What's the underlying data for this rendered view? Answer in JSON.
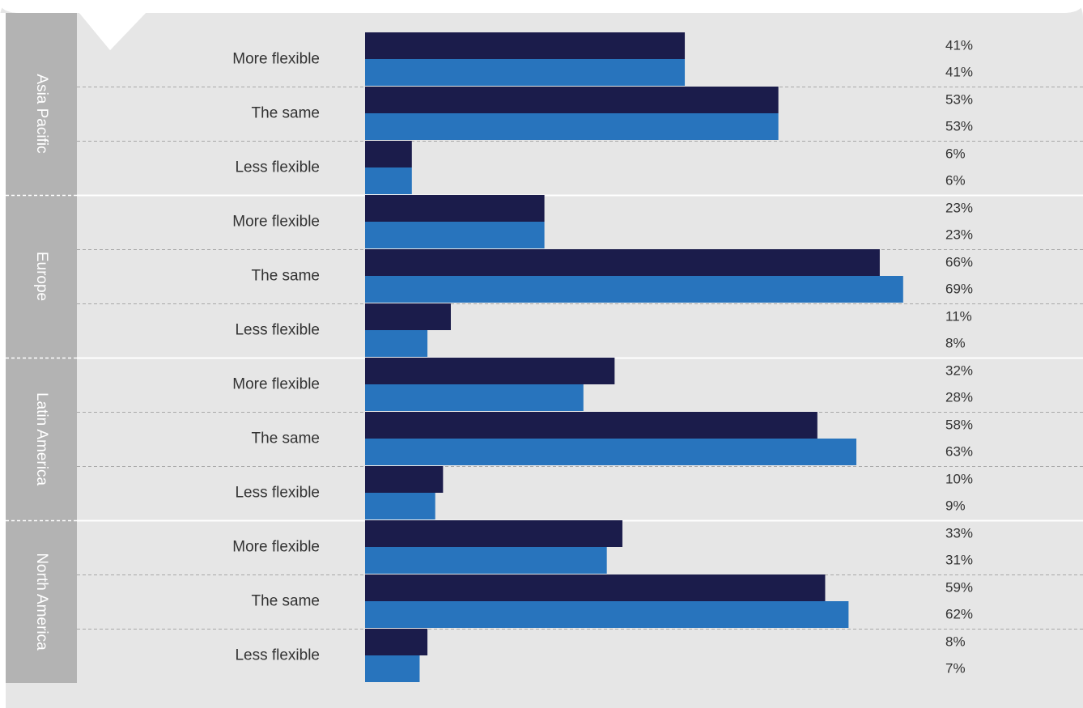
{
  "chart_data": {
    "type": "bar",
    "orientation": "horizontal",
    "grouped_by": "region",
    "xlim": [
      0,
      100
    ],
    "grid": false,
    "legend": "none",
    "colors": {
      "series_a": "#1b1c4b",
      "series_b": "#2874bd",
      "panel_background": "#e6e6e6",
      "region_band": "#b3b3b3",
      "separator": "#ffffff",
      "dashed_divider": "#a8a8a8",
      "text": "#333333"
    },
    "groups": [
      {
        "region": "Asia Pacific",
        "rows": [
          {
            "category": "More flexible",
            "values": [
              41,
              41
            ],
            "labels": [
              "41%",
              "41%"
            ]
          },
          {
            "category": "The same",
            "values": [
              53,
              53
            ],
            "labels": [
              "53%",
              "53%"
            ]
          },
          {
            "category": "Less flexible",
            "values": [
              6,
              6
            ],
            "labels": [
              "6%",
              "6%"
            ]
          }
        ]
      },
      {
        "region": "Europe",
        "rows": [
          {
            "category": "More flexible",
            "values": [
              23,
              23
            ],
            "labels": [
              "23%",
              "23%"
            ]
          },
          {
            "category": "The same",
            "values": [
              66,
              69
            ],
            "labels": [
              "66%",
              "69%"
            ]
          },
          {
            "category": "Less flexible",
            "values": [
              11,
              8
            ],
            "labels": [
              "11%",
              "8%"
            ]
          }
        ]
      },
      {
        "region": "Latin America",
        "rows": [
          {
            "category": "More flexible",
            "values": [
              32,
              28
            ],
            "labels": [
              "32%",
              "28%"
            ]
          },
          {
            "category": "The same",
            "values": [
              58,
              63
            ],
            "labels": [
              "58%",
              "63%"
            ]
          },
          {
            "category": "Less flexible",
            "values": [
              10,
              9
            ],
            "labels": [
              "10%",
              "9%"
            ]
          }
        ]
      },
      {
        "region": "North America",
        "rows": [
          {
            "category": "More flexible",
            "values": [
              33,
              31
            ],
            "labels": [
              "33%",
              "31%"
            ]
          },
          {
            "category": "The same",
            "values": [
              59,
              62
            ],
            "labels": [
              "59%",
              "62%"
            ]
          },
          {
            "category": "Less flexible",
            "values": [
              8,
              7
            ],
            "labels": [
              "8%",
              "7%"
            ]
          }
        ]
      }
    ]
  }
}
